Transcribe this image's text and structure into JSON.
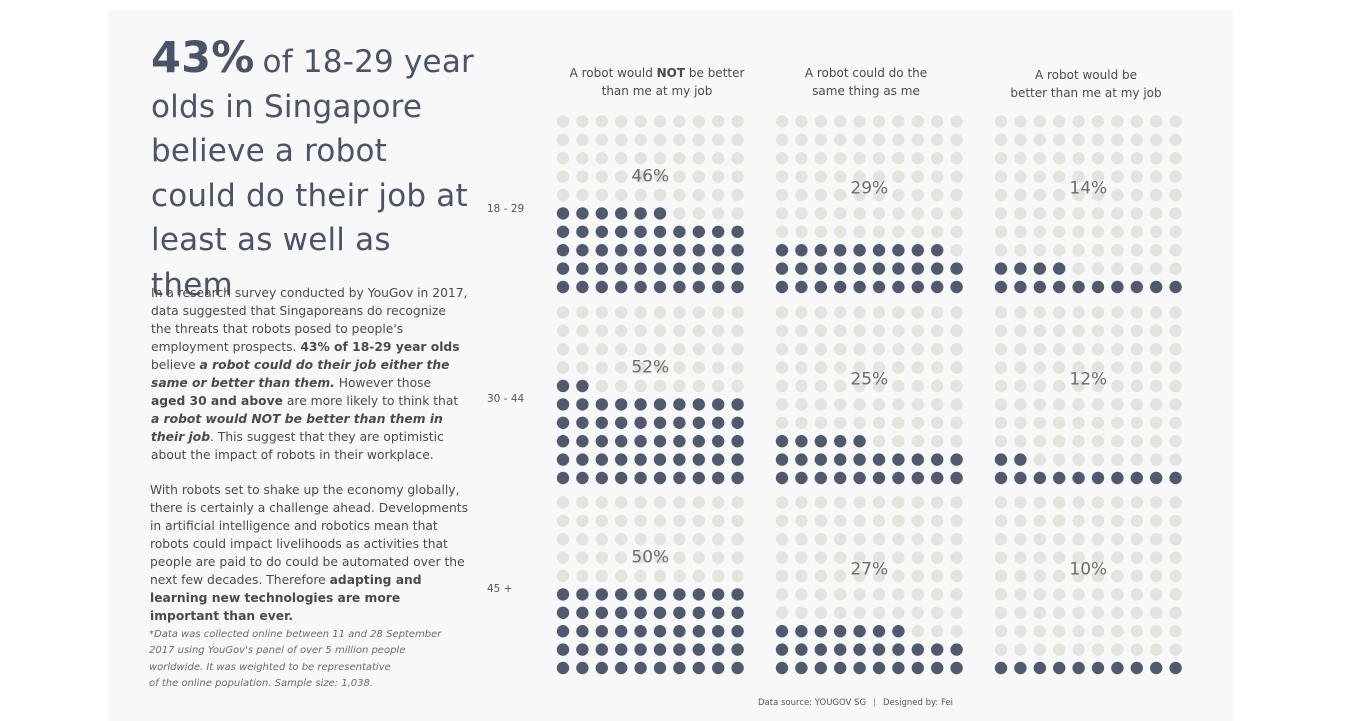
{
  "headline": {
    "big": "43%",
    "rest": "of 18-29 year olds in Singapore believe a robot could do their job at least as well as them"
  },
  "para1": [
    {
      "t": "In a research survey conducted by YouGov in 2017, data suggested that Singaporeans do  recognize the threats that robots posed to people's employment prospects. ",
      "s": ""
    },
    {
      "t": "43% of 18-29 year olds",
      "s": "b"
    },
    {
      "t": " believe ",
      "s": ""
    },
    {
      "t": "a robot could do their job either the same or better than them.",
      "s": "bi"
    },
    {
      "t": " However those ",
      "s": ""
    },
    {
      "t": "aged 30 and above",
      "s": "b"
    },
    {
      "t": " are more likely to think that ",
      "s": ""
    },
    {
      "t": "a robot would NOT be better than them in their job",
      "s": "bi"
    },
    {
      "t": ". This suggest that they are optimistic about the impact of robots in their workplace.",
      "s": ""
    }
  ],
  "para2": [
    {
      "t": "With robots set to shake up the economy globally, there is certainly a challenge ahead. Developments in artificial intelligence and robotics mean that robots could impact livelihoods as activities that people are paid to do could be automated over the next few decades. Therefore ",
      "s": ""
    },
    {
      "t": "adapting and learning new technologies are more important than ever.",
      "s": "b"
    }
  ],
  "footnote": [
    "*Data was collected online between 11 and 28 September",
    "2017 using YouGov's panel of over 5 million people",
    "worldwide. It was weighted to be representative",
    "of the online population. Sample size: 1,038."
  ],
  "columns": [
    {
      "pre": "A robot would ",
      "bold": "NOT",
      "post": " be better",
      "line2": "than me at my job"
    },
    {
      "pre": "A robot could do the",
      "bold": "",
      "post": "",
      "line2": "same thing as me"
    },
    {
      "pre": "A robot would be",
      "bold": "",
      "post": "",
      "line2": "better than me at my job"
    }
  ],
  "rows": [
    "18 - 29",
    "30 - 44",
    "45 +"
  ],
  "source": {
    "left": "Data source:  YOUGOV SG",
    "sep": "|",
    "right": "Designed by: Fei"
  },
  "colors": {
    "filled": "#4f5a6e",
    "empty": "#e4e3de",
    "text": "#4a5468"
  },
  "chart_data": {
    "type": "heatmap",
    "description_type": "waffle",
    "categories_rows": [
      "18 - 29",
      "30 - 44",
      "45 +"
    ],
    "categories_columns": [
      "A robot would NOT be better than me at my job",
      "A robot could do the same thing as me",
      "A robot would be better than me at my job"
    ],
    "values_percent": [
      [
        46,
        29,
        14
      ],
      [
        52,
        25,
        12
      ],
      [
        50,
        27,
        10
      ]
    ],
    "grid": "10x10 dots, filled from bottom"
  }
}
